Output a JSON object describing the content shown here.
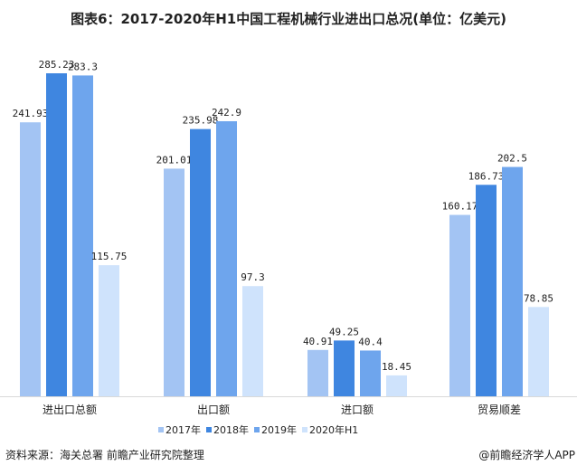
{
  "chart_data": {
    "type": "bar",
    "title": "图表6：2017-2020年H1中国工程机械行业进出口总况(单位：亿美元)",
    "categories": [
      "进出口总额",
      "出口额",
      "进口额",
      "贸易顺差"
    ],
    "series": [
      {
        "name": "2017年",
        "color": "#a3c4f3",
        "values": [
          241.93,
          201.01,
          40.91,
          160.17
        ],
        "labels": [
          "241.93",
          "201.01",
          "40.91",
          "160.17"
        ]
      },
      {
        "name": "2018年",
        "color": "#3f86e0",
        "values": [
          285.23,
          235.98,
          49.25,
          186.73
        ],
        "labels": [
          "285.23",
          "235.98",
          "49.25",
          "186.73"
        ]
      },
      {
        "name": "2019年",
        "color": "#6ea5ed",
        "values": [
          283.3,
          242.9,
          40.4,
          202.5
        ],
        "labels": [
          "283.3",
          "242.9",
          "40.4",
          "202.5"
        ]
      },
      {
        "name": "2020年H1",
        "color": "#cfe3fc",
        "values": [
          115.75,
          97.3,
          18.45,
          78.85
        ],
        "labels": [
          "115.75",
          "97.3",
          "18.45",
          "78.85"
        ]
      }
    ],
    "ylim": [
      0,
      285.23
    ],
    "grid": false,
    "legend": "bottom"
  },
  "footer": {
    "source": "资料来源：海关总署 前瞻产业研究院整理",
    "brand": "@前瞻经济学人APP"
  }
}
